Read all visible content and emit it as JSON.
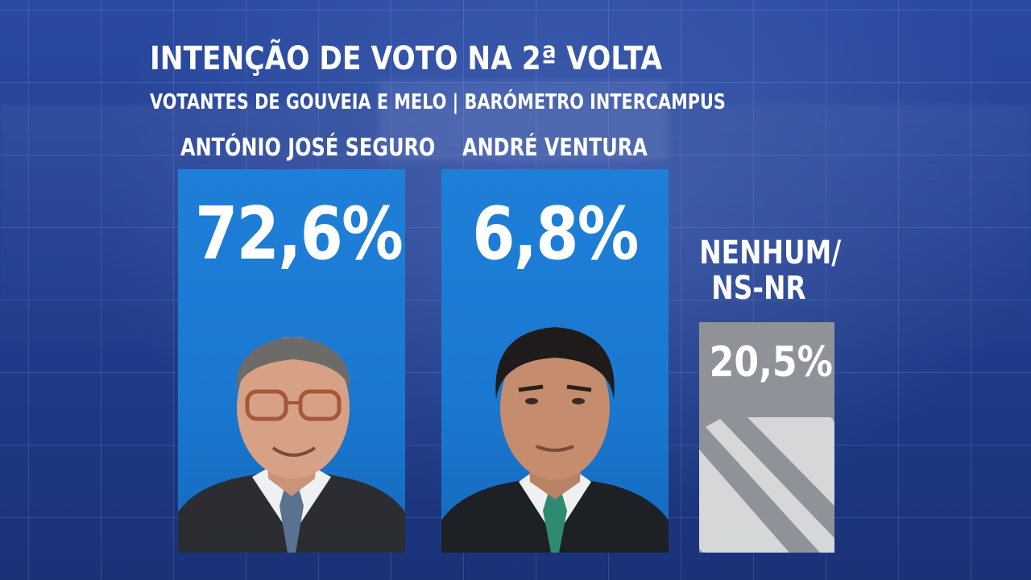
{
  "chart_data": {
    "type": "bar",
    "title": "INTENÇÃO DE VOTO NA 2ª VOLTA",
    "subtitle": "VOTANTES  DE GOUVEIA E MELO | BARÓMETRO INTERCAMPUS",
    "categories": [
      "ANTÓNIO JOSÉ SEGURO",
      "ANDRÉ VENTURA",
      "NENHUM/ NS-NR"
    ],
    "values": [
      72.6,
      6.8,
      20.5
    ],
    "value_labels": [
      "72,6%",
      "6,8%",
      "20,5%"
    ],
    "other_label_lines": [
      "NENHUM/",
      "NS-NR"
    ],
    "colors": {
      "candidate_bar": "#1f7fd8",
      "other_bar": "#8f9399",
      "background": "#213e8f"
    },
    "icons": [
      "candidate-portrait-seguro",
      "candidate-portrait-ventura",
      "none-slash-icon"
    ]
  }
}
